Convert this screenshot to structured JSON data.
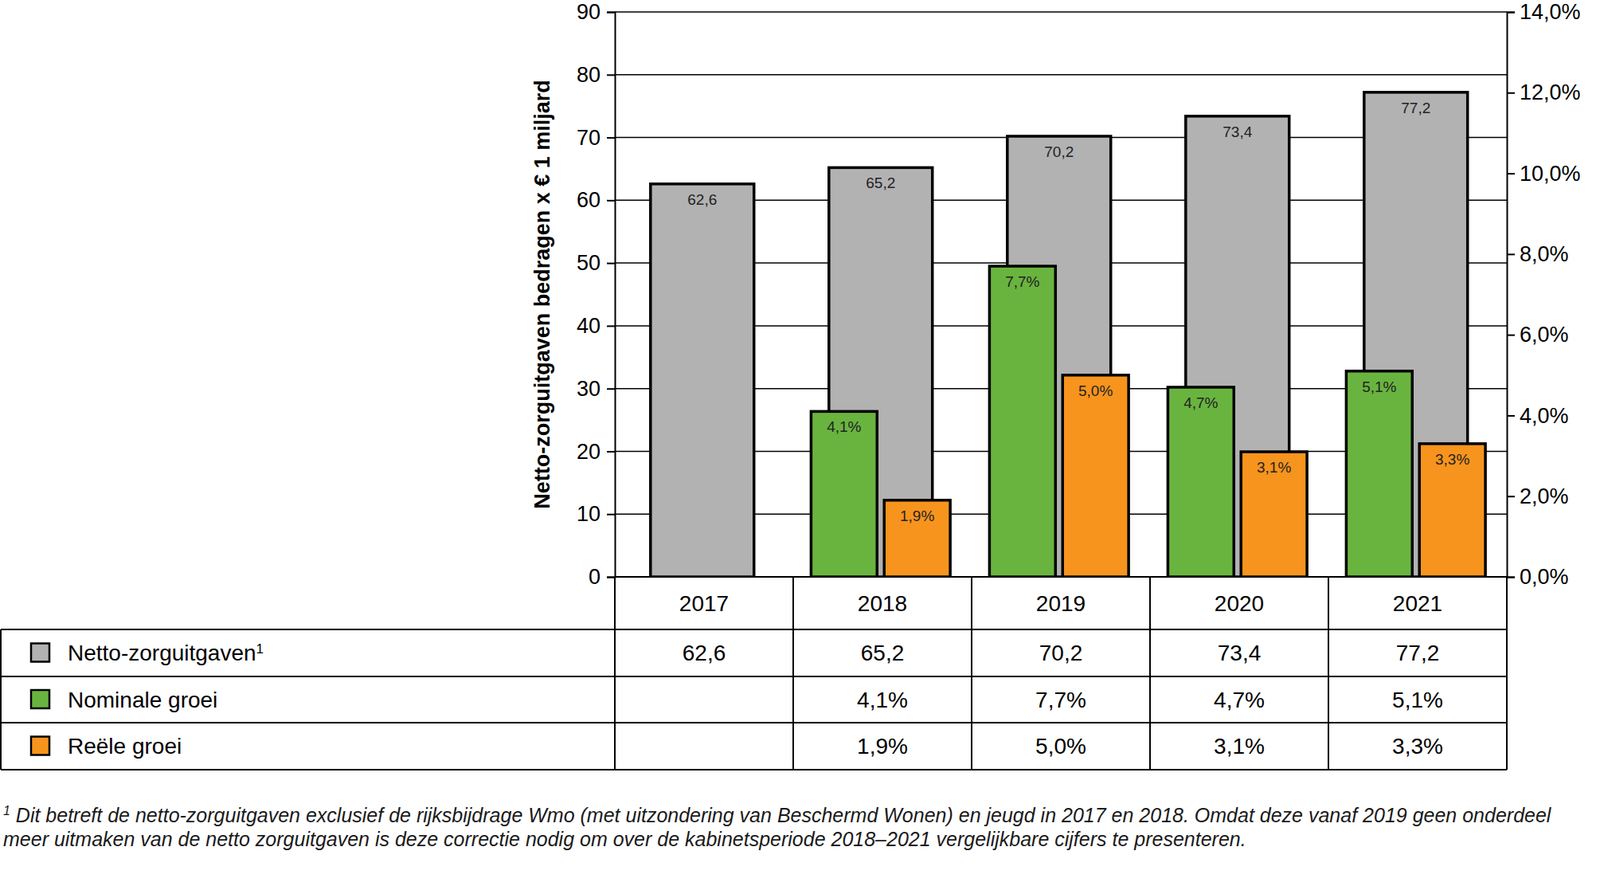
{
  "chart_data": {
    "type": "bar",
    "y_label": "Netto-zorguitgaven bedragen x € 1 miljard",
    "categories": [
      "2017",
      "2018",
      "2019",
      "2020",
      "2021"
    ],
    "series": [
      {
        "name": "Netto-zorguitgaven",
        "color": "#b2b2b2",
        "values": [
          62.6,
          65.2,
          70.2,
          73.4,
          77.2
        ],
        "value_labels": [
          "62,6",
          "65,2",
          "70,2",
          "73,4",
          "77,2"
        ]
      },
      {
        "name": "Nominale groei",
        "color": "#69b43f",
        "axis": "y2",
        "values": [
          null,
          4.1,
          7.7,
          4.7,
          5.1
        ],
        "value_labels": [
          null,
          "4,1%",
          "7,7%",
          "4,7%",
          "5,1%"
        ]
      },
      {
        "name": "Reële groei",
        "color": "#f7941d",
        "axis": "y2",
        "values": [
          null,
          1.9,
          5.0,
          3.1,
          3.3
        ],
        "value_labels": [
          null,
          "1,9%",
          "5,0%",
          "3,1%",
          "3,3%"
        ]
      }
    ],
    "ylim": [
      0,
      90
    ],
    "yticks": [
      0,
      10,
      20,
      30,
      40,
      50,
      60,
      70,
      80,
      90
    ],
    "y2lim": [
      0,
      14
    ],
    "y2ticks": [
      {
        "value": 0,
        "label": "0,0%"
      },
      {
        "value": 2,
        "label": "2,0%"
      },
      {
        "value": 4,
        "label": "4,0%"
      },
      {
        "value": 6,
        "label": "6,0%"
      },
      {
        "value": 8,
        "label": "8,0%"
      },
      {
        "value": 10,
        "label": "10,0%"
      },
      {
        "value": 12,
        "label": "12,0%"
      },
      {
        "value": 14,
        "label": "14,0%"
      }
    ],
    "grid": true,
    "data_labels": true,
    "footnote": {
      "marker": "1",
      "text": "Dit betreft de netto-zorguitgaven exclusief de rijksbijdrage Wmo (met uitzondering van Beschermd Wonen) en jeugd in 2017 en 2018. Omdat deze vanaf 2019 geen onderdeel meer uitmaken van de netto zorguitgaven is deze correctie nodig om over de kabinetsperiode 2018–2021 vergelijkbare cijfers te presenteren."
    }
  }
}
